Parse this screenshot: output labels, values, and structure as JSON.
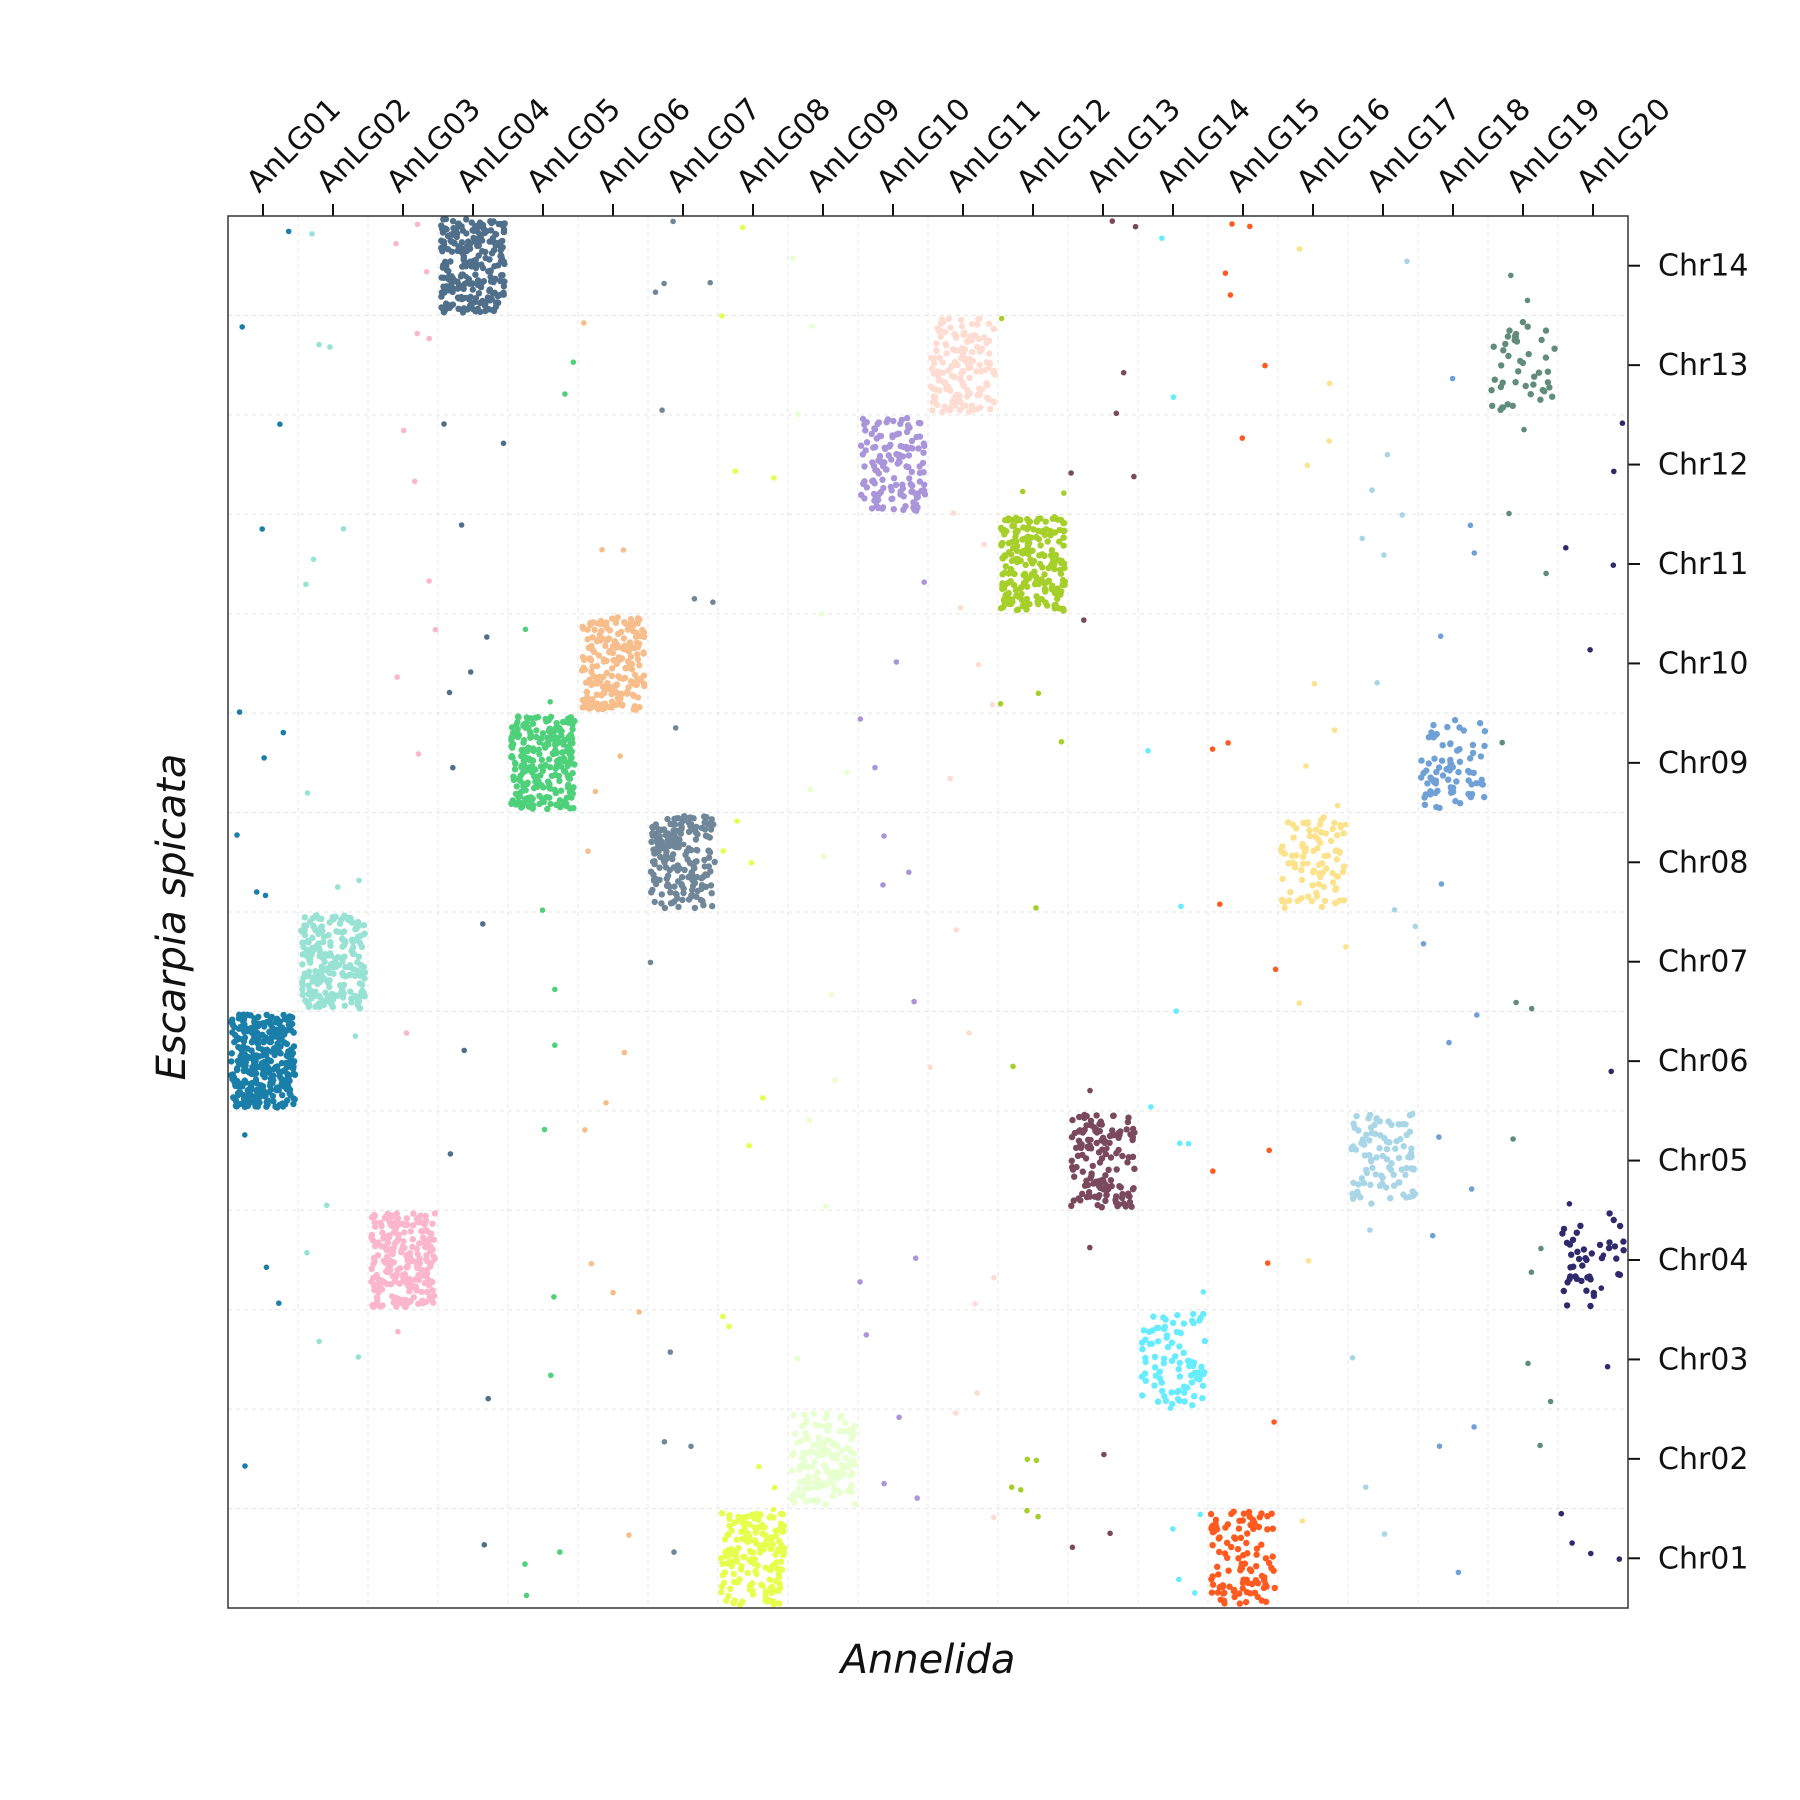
{
  "chart_data": {
    "type": "scatter",
    "title": "",
    "xlabel": "Annelida",
    "ylabel": "Escarpia spicata",
    "x_categories": [
      "AnLG01",
      "AnLG02",
      "AnLG03",
      "AnLG04",
      "AnLG05",
      "AnLG06",
      "AnLG07",
      "AnLG08",
      "AnLG09",
      "AnLG10",
      "AnLG11",
      "AnLG12",
      "AnLG13",
      "AnLG14",
      "AnLG15",
      "AnLG16",
      "AnLG17",
      "AnLG18",
      "AnLG19",
      "AnLG20"
    ],
    "y_categories": [
      "Chr01",
      "Chr02",
      "Chr03",
      "Chr04",
      "Chr05",
      "Chr06",
      "Chr07",
      "Chr08",
      "Chr09",
      "Chr10",
      "Chr11",
      "Chr12",
      "Chr13",
      "Chr14"
    ],
    "x_axis_position": "top",
    "y_axis_position": "right",
    "grid": true,
    "legend": "none",
    "note_units": "each x/y category spans one unit; dense blocks are clusters of orthologous gene pairs",
    "blocks": [
      {
        "x": "AnLG01",
        "y": "Chr06",
        "color": "#1a7fa8",
        "count": 330
      },
      {
        "x": "AnLG02",
        "y": "Chr07",
        "color": "#98e2d4",
        "count": 230
      },
      {
        "x": "AnLG03",
        "y": "Chr04",
        "color": "#fbb6ce",
        "count": 230
      },
      {
        "x": "AnLG04",
        "y": "Chr14",
        "color": "#4f6f8a",
        "count": 260
      },
      {
        "x": "AnLG05",
        "y": "Chr09",
        "color": "#4fd17c",
        "count": 250
      },
      {
        "x": "AnLG06",
        "y": "Chr10",
        "color": "#f7bd8b",
        "count": 200
      },
      {
        "x": "AnLG07",
        "y": "Chr08",
        "color": "#708699",
        "count": 200
      },
      {
        "x": "AnLG08",
        "y": "Chr01",
        "color": "#e6ff4d",
        "count": 170
      },
      {
        "x": "AnLG09",
        "y": "Chr02",
        "color": "#e8ffd0",
        "count": 150
      },
      {
        "x": "AnLG10",
        "y": "Chr12",
        "color": "#a995d9",
        "count": 140
      },
      {
        "x": "AnLG11",
        "y": "Chr13",
        "color": "#ffdcd2",
        "count": 160
      },
      {
        "x": "AnLG12",
        "y": "Chr11",
        "color": "#a6cf2a",
        "count": 220
      },
      {
        "x": "AnLG13",
        "y": "Chr05",
        "color": "#7a4a5c",
        "count": 140
      },
      {
        "x": "AnLG14",
        "y": "Chr03",
        "color": "#66ecff",
        "count": 90
      },
      {
        "x": "AnLG15",
        "y": "Chr01",
        "color": "#ff5a1f",
        "count": 110
      },
      {
        "x": "AnLG16",
        "y": "Chr08",
        "color": "#fce28a",
        "count": 90
      },
      {
        "x": "AnLG17",
        "y": "Chr05",
        "color": "#a8d6e6",
        "count": 100
      },
      {
        "x": "AnLG18",
        "y": "Chr09",
        "color": "#6fa0d6",
        "count": 80
      },
      {
        "x": "AnLG19",
        "y": "Chr13",
        "color": "#618c7c",
        "count": 45
      },
      {
        "x": "AnLG20",
        "y": "Chr04",
        "color": "#2e2a6b",
        "count": 45
      }
    ]
  }
}
